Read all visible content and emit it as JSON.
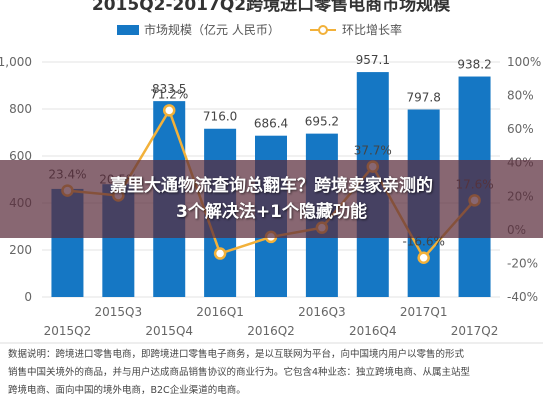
{
  "chart_data": {
    "type": "bar",
    "title": "2015Q2-2017Q2跨境进口零售电商市场规模",
    "categories": [
      "2015Q2",
      "2015Q3",
      "2015Q4",
      "2016Q1",
      "2016Q2",
      "2016Q3",
      "2016Q4",
      "2017Q1",
      "2017Q2"
    ],
    "series": [
      {
        "name": "市场规模（亿元 人民币）",
        "type": "bar",
        "color": "#1577c4",
        "axis": "left",
        "values": [
          460,
          480,
          833.5,
          716.0,
          686.4,
          695.2,
          957.1,
          797.8,
          938.2
        ],
        "labels": [
          "",
          "",
          "833.5",
          "716.0",
          "686.4",
          "695.2",
          "957.1",
          "797.8",
          "938.2"
        ]
      },
      {
        "name": "环比增长率",
        "type": "line",
        "color": "#f2b13a",
        "axis": "right",
        "values": [
          23.4,
          20.5,
          71.2,
          -14.1,
          -4.2,
          1.3,
          37.7,
          -16.6,
          17.6
        ],
        "labels": [
          "23.4%",
          "20.5%",
          "71.2%",
          "",
          "",
          "",
          "37.7%",
          "-16.6%",
          "17.6%"
        ]
      }
    ],
    "y_left": {
      "min": 0,
      "max": 1000,
      "ticks": [
        "0",
        "200",
        "400",
        "600",
        "800",
        "1,000"
      ]
    },
    "y_right": {
      "min": -40,
      "max": 100,
      "ticks": [
        "-40%",
        "-20%",
        "0%",
        "20%",
        "40%",
        "60%",
        "80%",
        "100%"
      ]
    },
    "grid": true,
    "legend": "top"
  },
  "overlay": {
    "line1": "嘉里大通物流查询总翻车？跨境卖家亲测的",
    "line2": "3个解决法+1个隐藏功能"
  },
  "note": {
    "line1": "数据说明：跨境进口零售电商，即跨境进口零售电子商务，是以互联网为平台，向中国境内用户以零售的形式",
    "line2": "销售中国关境外的商品，并与用户达成商品销售协议的商业行为。它包含4种业态：独立跨境电商、从属主站型",
    "line3": "跨境电商、面向中国的境外电商，B2C企业渠道的电商。"
  }
}
